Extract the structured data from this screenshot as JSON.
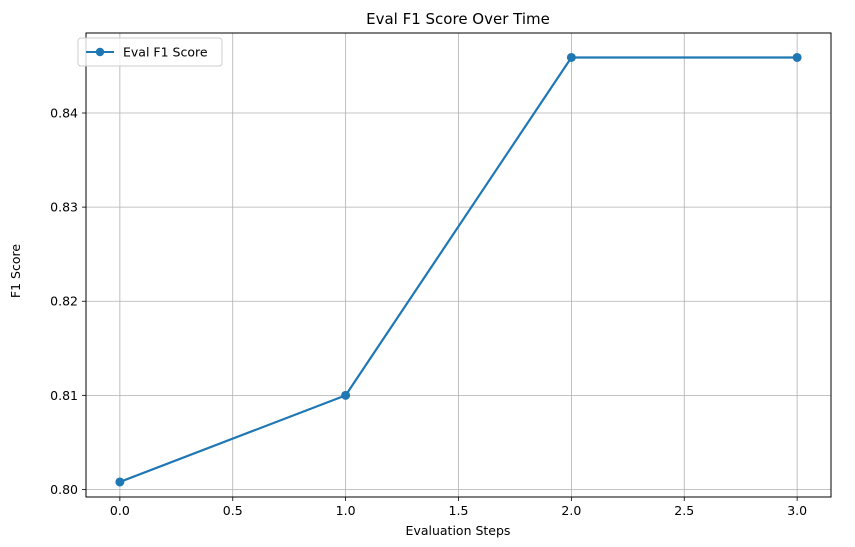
{
  "chart_data": {
    "type": "line",
    "title": "Eval F1 Score Over Time",
    "xlabel": "Evaluation Steps",
    "ylabel": "F1 Score",
    "xlim": [
      -0.15,
      3.15
    ],
    "ylim": [
      0.7992,
      0.8485
    ],
    "xticks": [
      0.0,
      0.5,
      1.0,
      1.5,
      2.0,
      2.5,
      3.0
    ],
    "xtick_labels": [
      "0.0",
      "0.5",
      "1.0",
      "1.5",
      "2.0",
      "2.5",
      "3.0"
    ],
    "yticks": [
      0.8,
      0.81,
      0.82,
      0.83,
      0.84
    ],
    "ytick_labels": [
      "0.80",
      "0.81",
      "0.82",
      "0.83",
      "0.84"
    ],
    "grid": true,
    "legend_position": "top-left",
    "series": [
      {
        "name": "Eval F1 Score",
        "color": "#1f77b4",
        "marker": "circle",
        "x": [
          0,
          1,
          2,
          3
        ],
        "y": [
          0.8008,
          0.81,
          0.8459,
          0.8459
        ]
      }
    ]
  },
  "colors": {
    "grid": "#b0b0b0",
    "axis": "#000000",
    "background": "#ffffff"
  }
}
